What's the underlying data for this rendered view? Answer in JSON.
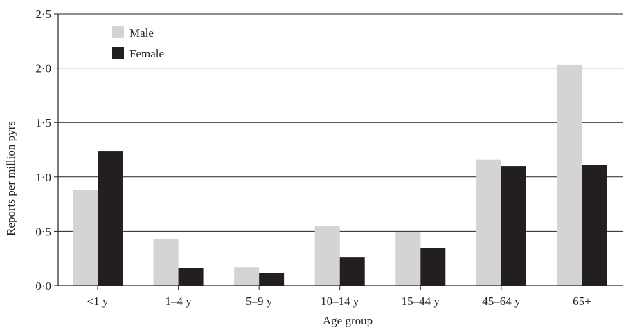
{
  "chart_data": {
    "type": "bar",
    "title": "",
    "xlabel": "Age group",
    "ylabel": "Reports per million pyrs",
    "categories": [
      "<1 y",
      "1–4 y",
      "5–9 y",
      "10–14 y",
      "15–44 y",
      "45–64 y",
      "65+"
    ],
    "series": [
      {
        "name": "Male",
        "values": [
          0.88,
          0.43,
          0.17,
          0.55,
          0.49,
          1.16,
          2.03
        ],
        "color": "#d4d4d4"
      },
      {
        "name": "Female",
        "values": [
          1.24,
          0.16,
          0.12,
          0.26,
          0.35,
          1.1,
          1.11
        ],
        "color": "#231f20"
      }
    ],
    "ylim": [
      0,
      2.5
    ],
    "yticks": [
      0,
      0.5,
      1.0,
      1.5,
      2.0,
      2.5
    ],
    "ytick_labels": [
      "0·0",
      "0·5",
      "1·0",
      "1·5",
      "2·0",
      "2·5"
    ],
    "grid": true,
    "legend_position": "top-left"
  }
}
